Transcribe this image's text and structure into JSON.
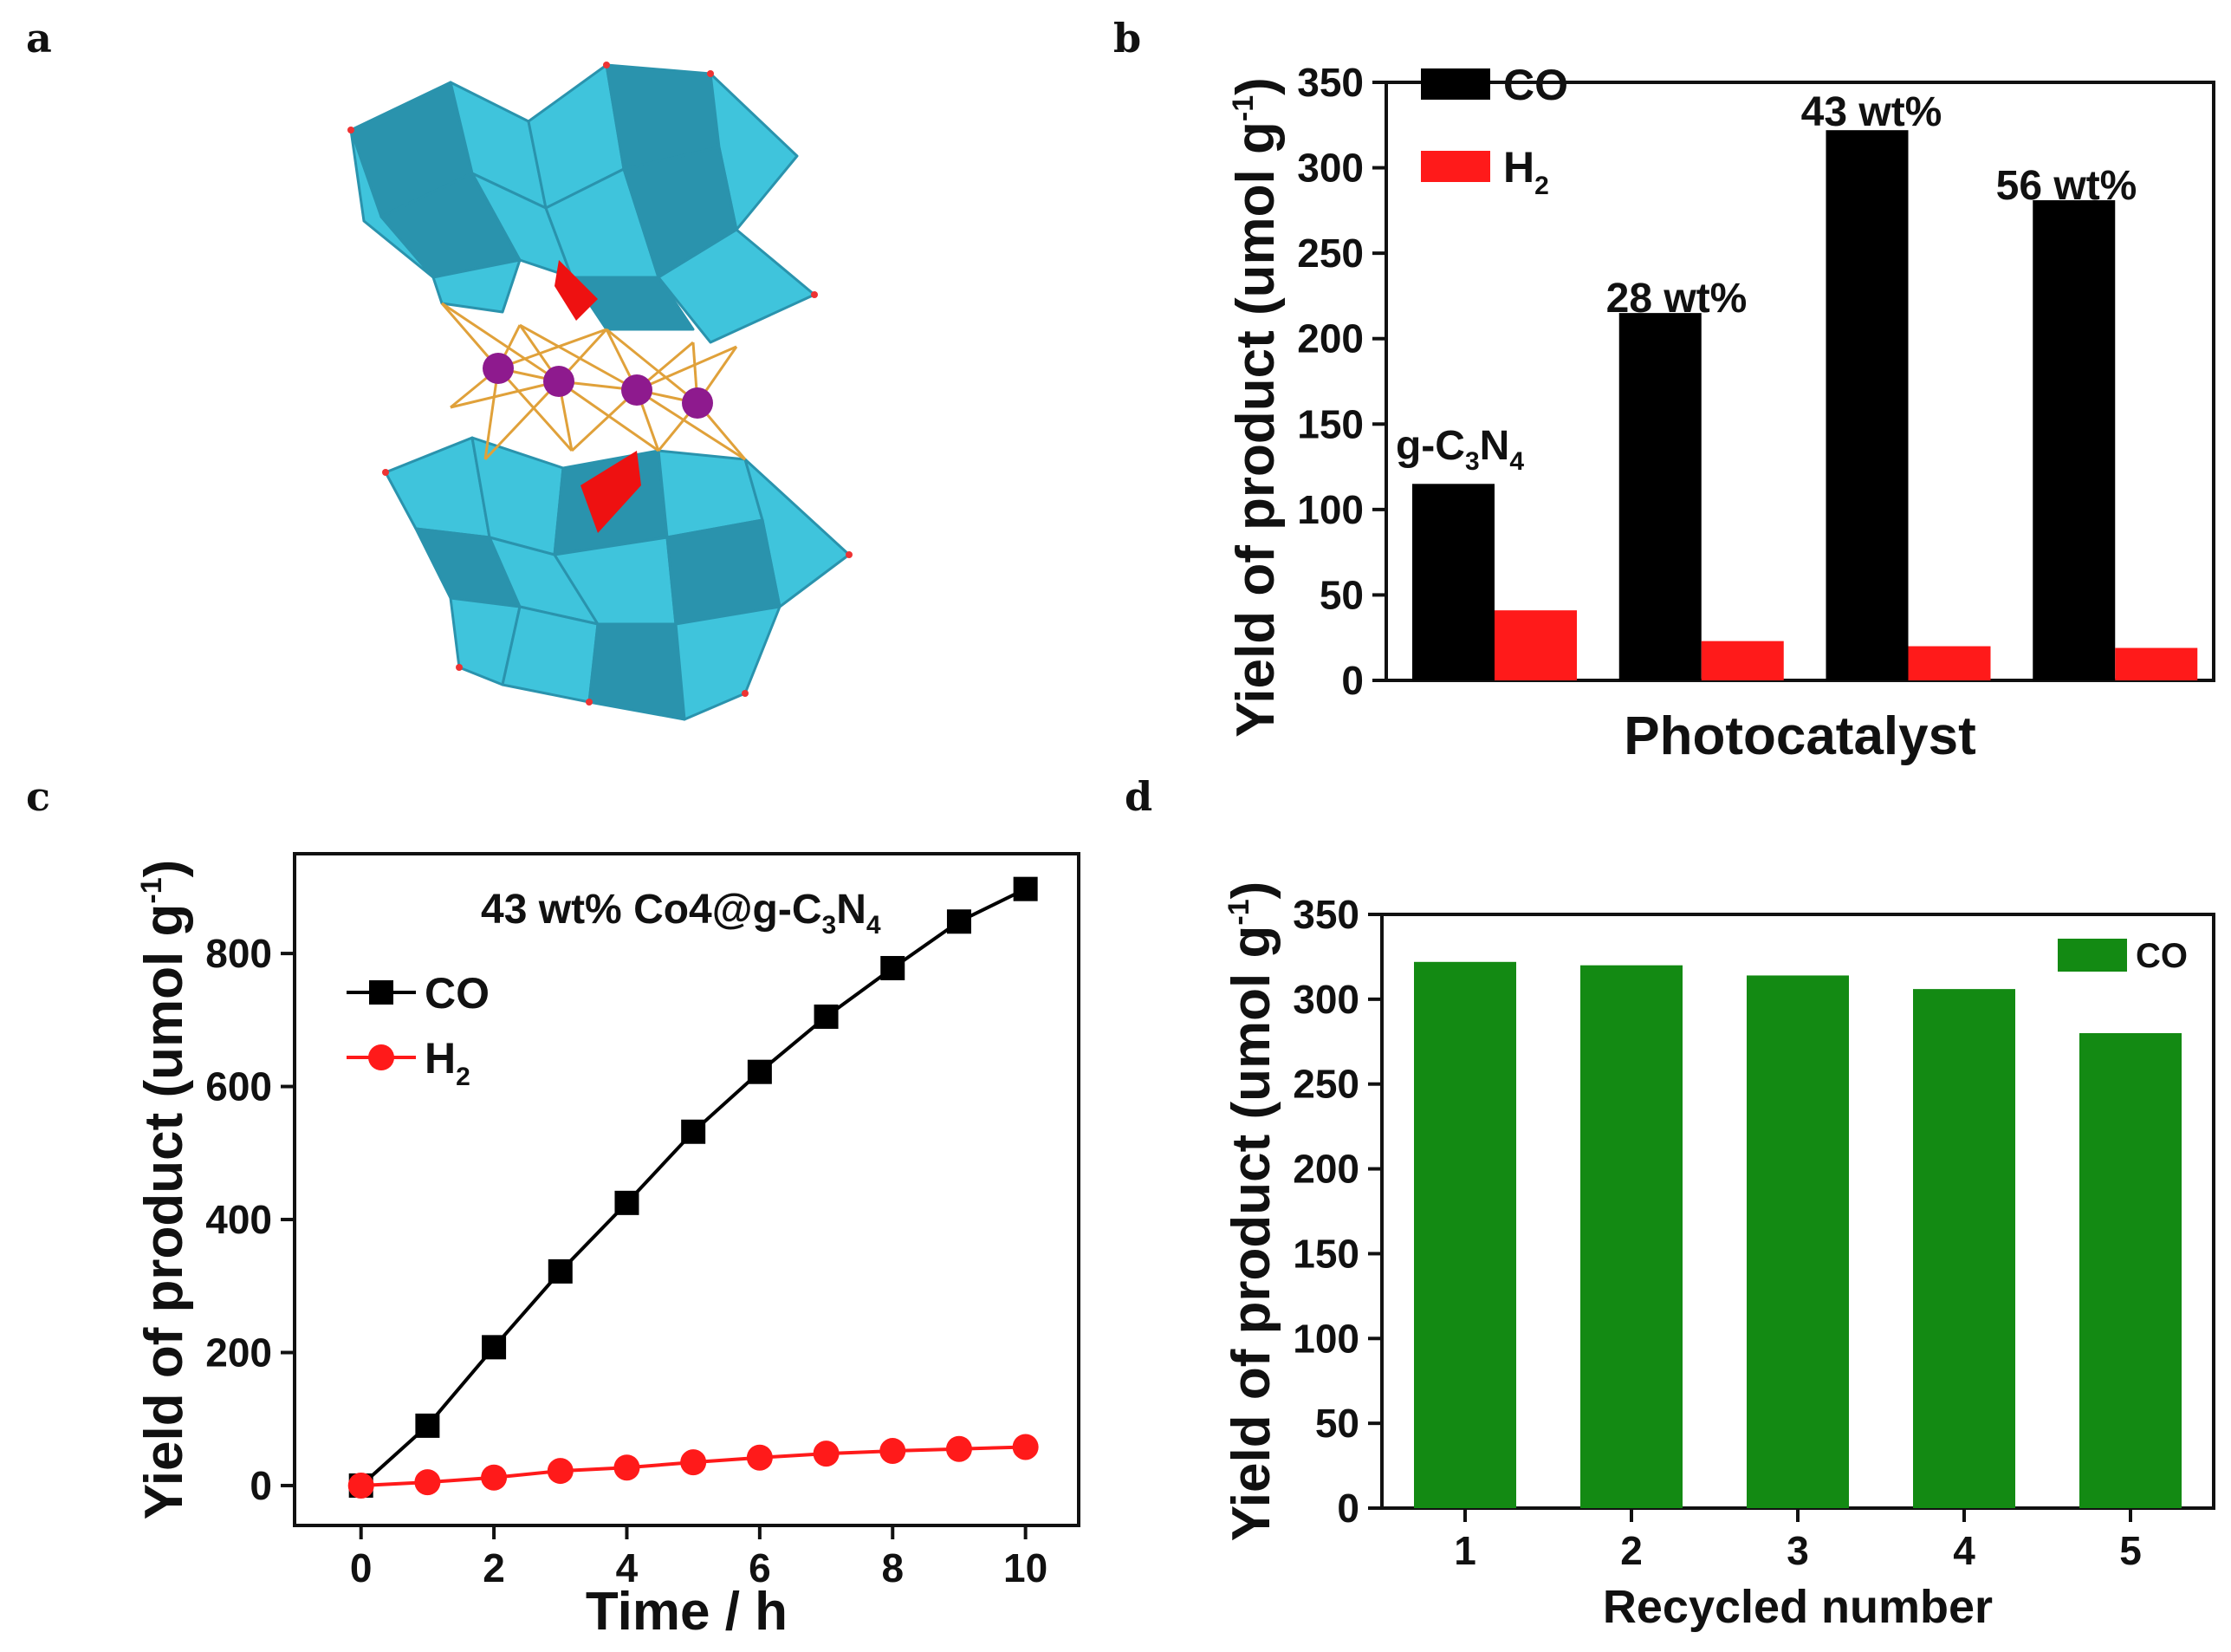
{
  "panels": {
    "a": {
      "letter": "a"
    },
    "b": {
      "letter": "b"
    },
    "c": {
      "letter": "c"
    },
    "d": {
      "letter": "d"
    }
  },
  "colors": {
    "polyhedra": "#3fc4dc",
    "polyhedra_dark": "#2a93ad",
    "bridge": "#ee1111",
    "bonds": "#e0a13a",
    "atom": "#8e1a8e",
    "co_bar": "#000000",
    "h2_bar": "#ff1a1a",
    "recycle_bar": "#138a13"
  },
  "chart_data": [
    {
      "panel": "b",
      "type": "bar",
      "title": "",
      "xlabel": "Photocatalyst",
      "ylabel_main": "Yield of product (umol g",
      "ylabel_sup": "-1",
      "ylabel_end": ")",
      "ylim": [
        0,
        350
      ],
      "yticks": [
        0,
        50,
        100,
        150,
        200,
        250,
        300,
        350
      ],
      "categories": [
        "g-C3N4",
        "28 wt%",
        "43 wt%",
        "56 wt%"
      ],
      "series": [
        {
          "name": "CO",
          "values": [
            115,
            215,
            322,
            281
          ]
        },
        {
          "name": "H2",
          "values": [
            41,
            23,
            20,
            19
          ]
        }
      ],
      "legend": [
        {
          "label": "CO",
          "sub": ""
        },
        {
          "label": "H",
          "sub": "2"
        }
      ],
      "legend_position": "top-left",
      "annotations": [
        {
          "text": "g-C",
          "sub1": "3",
          "mid": "N",
          "sub2": "4"
        },
        {
          "text": "28 wt%"
        },
        {
          "text": "43 wt%"
        },
        {
          "text": "56 wt%"
        }
      ]
    },
    {
      "panel": "c",
      "type": "line",
      "xlabel": "Time / h",
      "ylabel_main": "Yield of product (umol g",
      "ylabel_sup": "-1",
      "ylabel_end": ")",
      "xlim": [
        -1,
        10.8
      ],
      "ylim": [
        -60,
        950
      ],
      "xticks": [
        0,
        2,
        4,
        6,
        8,
        10
      ],
      "yticks": [
        0,
        200,
        400,
        600,
        800
      ],
      "x": [
        0,
        1,
        2,
        3,
        4,
        5,
        6,
        7,
        8,
        9,
        10
      ],
      "series": [
        {
          "name": "CO",
          "values": [
            0,
            90,
            208,
            322,
            425,
            532,
            622,
            705,
            778,
            848,
            897
          ]
        },
        {
          "name": "H2",
          "values": [
            0,
            5,
            12,
            22,
            27,
            35,
            42,
            48,
            52,
            55,
            58
          ]
        }
      ],
      "legend": [
        {
          "label": "CO",
          "sub": ""
        },
        {
          "label": "H",
          "sub": "2"
        }
      ],
      "legend_position": "left",
      "annotation": {
        "pre": "43 wt% Co4@g-C",
        "sub1": "3",
        "mid": "N",
        "sub2": "4"
      }
    },
    {
      "panel": "d",
      "type": "bar",
      "xlabel": "Recycled number",
      "ylabel_main": "Yield of product (umol g",
      "ylabel_sup": "-1",
      "ylabel_end": ")",
      "ylim": [
        0,
        350
      ],
      "yticks": [
        0,
        50,
        100,
        150,
        200,
        250,
        300,
        350
      ],
      "categories": [
        "1",
        "2",
        "3",
        "4",
        "5"
      ],
      "series": [
        {
          "name": "CO",
          "values": [
            322,
            320,
            314,
            306,
            280
          ]
        }
      ],
      "legend": [
        {
          "label": "CO"
        }
      ],
      "legend_position": "top-right"
    }
  ]
}
